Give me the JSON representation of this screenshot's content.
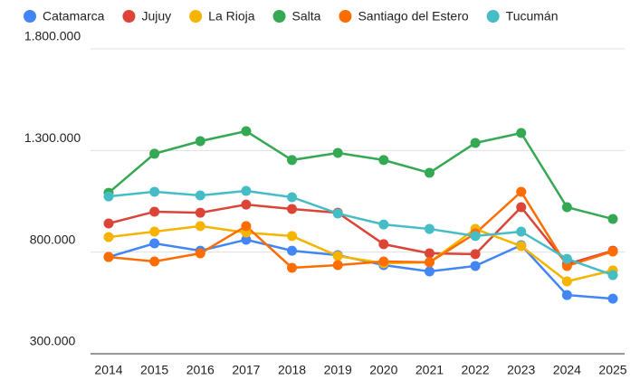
{
  "chart_data": {
    "type": "line",
    "categories": [
      "2014",
      "2015",
      "2016",
      "2017",
      "2018",
      "2019",
      "2020",
      "2021",
      "2022",
      "2023",
      "2024",
      "2025"
    ],
    "series": [
      {
        "name": "Catamarca",
        "color": "#4285f4",
        "values": [
          776000,
          843000,
          807000,
          861000,
          807000,
          785000,
          736000,
          705000,
          732000,
          834000,
          589000,
          571000
        ]
      },
      {
        "name": "Jujuy",
        "color": "#db4437",
        "values": [
          941000,
          999000,
          994000,
          1034000,
          1012000,
          994000,
          839000,
          794000,
          790000,
          1021000,
          741000,
          807000
        ]
      },
      {
        "name": "La Rioja",
        "color": "#f4b400",
        "values": [
          874000,
          901000,
          928000,
          896000,
          879000,
          781000,
          745000,
          750000,
          914000,
          830000,
          656000,
          710000
        ]
      },
      {
        "name": "Salta",
        "color": "#34a853",
        "values": [
          1092000,
          1284000,
          1346000,
          1395000,
          1253000,
          1288000,
          1253000,
          1190000,
          1337000,
          1386000,
          1021000,
          963000
        ]
      },
      {
        "name": "Santiago del Estero",
        "color": "#ff6d01",
        "values": [
          776000,
          754000,
          794000,
          928000,
          723000,
          736000,
          754000,
          750000,
          892000,
          1097000,
          732000,
          803000
        ]
      },
      {
        "name": "Tucumán",
        "color": "#46bdc6",
        "values": [
          1074000,
          1097000,
          1079000,
          1101000,
          1070000,
          990000,
          936000,
          914000,
          879000,
          901000,
          767000,
          687000
        ]
      }
    ],
    "ylim": [
      300000,
      1800000
    ],
    "yticks": [
      {
        "value": 300000,
        "label": "300.000"
      },
      {
        "value": 800000,
        "label": "800.000"
      },
      {
        "value": 1300000,
        "label": "1.300.000"
      },
      {
        "value": 1800000,
        "label": "1.800.000"
      }
    ],
    "grid": true,
    "legend": "top"
  }
}
